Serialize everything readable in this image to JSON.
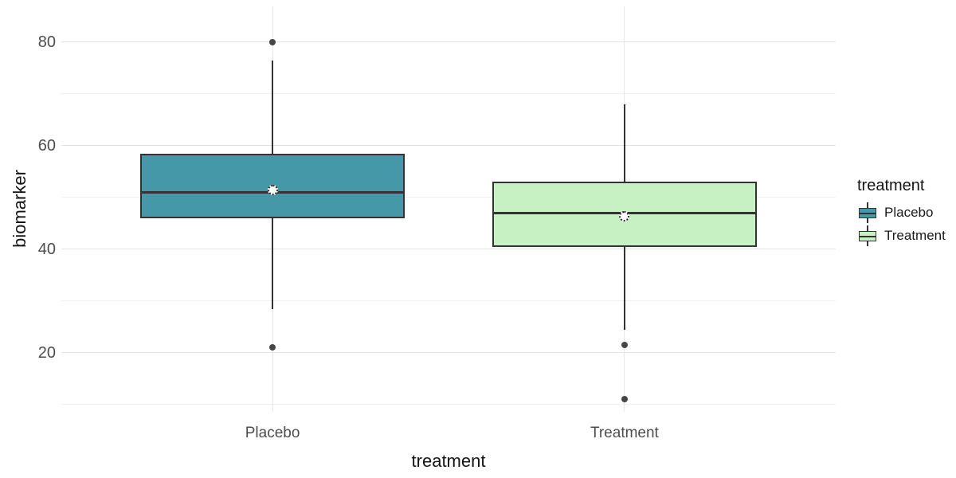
{
  "chart_data": {
    "type": "boxplot",
    "title": "",
    "xlabel": "treatment",
    "ylabel": "biomarker",
    "categories": [
      "Placebo",
      "Treatment"
    ],
    "y_axis": {
      "major_ticks": [
        20,
        40,
        60,
        80
      ],
      "minor_ticks": [
        10,
        30,
        50,
        70
      ],
      "range": [
        8.6,
        86.9
      ]
    },
    "grid": true,
    "series": [
      {
        "name": "Placebo",
        "fill": "#4498a8",
        "q1": 46,
        "median": 51,
        "q3": 58.5,
        "whisker_low": 28.5,
        "whisker_high": 76.5,
        "mean": 51.5,
        "outliers": [
          80,
          21
        ]
      },
      {
        "name": "Treatment",
        "fill": "#c7f0c3",
        "q1": 40.5,
        "median": 47,
        "q3": 53,
        "whisker_low": 24.5,
        "whisker_high": 68,
        "mean": 46.3,
        "outliers": [
          21.5,
          11
        ]
      }
    ],
    "legend": {
      "title": "treatment",
      "position": "right",
      "entries": [
        {
          "label": "Placebo",
          "fill": "#4498a8"
        },
        {
          "label": "Treatment",
          "fill": "#c7f0c3"
        }
      ]
    },
    "style": {
      "box_border_color": "#333333",
      "median_color": "#333333",
      "outlier_color": "#464646",
      "mean_fill": "#ffffff",
      "grid_major_color": "#e3e3e3",
      "grid_minor_color": "#f0f0f0",
      "tick_label_color": "#4d4d4d",
      "axis_title_color": "#141414"
    }
  }
}
